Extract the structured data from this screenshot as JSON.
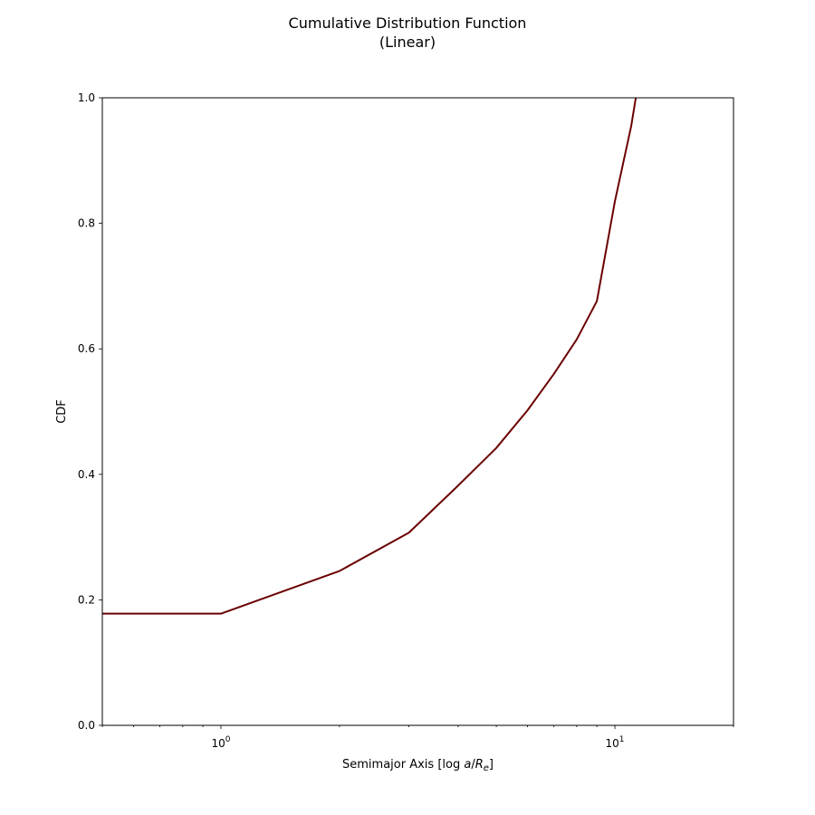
{
  "chart_data": {
    "type": "line",
    "title": "Cumulative Distribution Function",
    "subtitle": "(Linear)",
    "xlabel_main": "Semimajor Axis [log ",
    "xlabel_math": "a",
    "xlabel_slash": "/",
    "xlabel_R": "R",
    "xlabel_sub": "e",
    "xlabel_close": "]",
    "ylabel": "CDF",
    "xscale": "log",
    "xlim": [
      0.5,
      20
    ],
    "ylim": [
      0.0,
      1.0
    ],
    "x_ticks": [
      {
        "value": 1,
        "base": "10",
        "exp": "0"
      },
      {
        "value": 10,
        "base": "10",
        "exp": "1"
      }
    ],
    "y_ticks": [
      {
        "value": 0.0,
        "label": "0.0"
      },
      {
        "value": 0.2,
        "label": "0.2"
      },
      {
        "value": 0.4,
        "label": "0.4"
      },
      {
        "value": 0.6,
        "label": "0.6"
      },
      {
        "value": 0.8,
        "label": "0.8"
      },
      {
        "value": 1.0,
        "label": "1.0"
      }
    ],
    "grid": false,
    "line_color": "#6b0000",
    "series": [
      {
        "x": [
          0.5,
          1,
          2,
          3,
          4,
          5,
          6,
          7,
          8,
          9,
          10,
          11,
          11.3
        ],
        "y": [
          0.178,
          0.178,
          0.246,
          0.307,
          0.382,
          0.442,
          0.502,
          0.56,
          0.615,
          0.676,
          0.835,
          0.955,
          1.0
        ]
      }
    ]
  }
}
